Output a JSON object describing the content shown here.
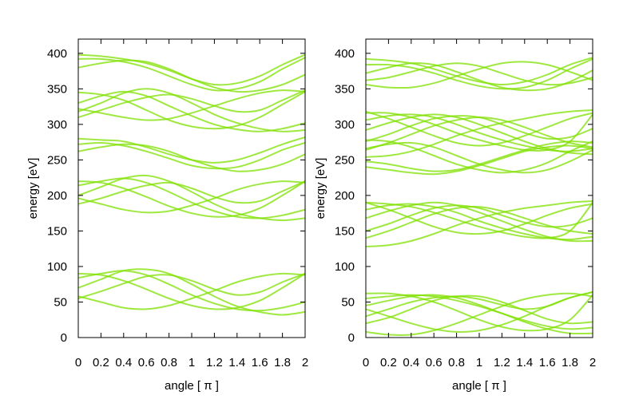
{
  "chart_data": [
    {
      "type": "line",
      "title": "",
      "xlabel": "angle [ π ]",
      "ylabel": "energy [eV]",
      "xlim": [
        0,
        2
      ],
      "ylim": [
        0,
        420
      ],
      "xticks": [
        "0",
        "0.2",
        "0.4",
        "0.6",
        "0.8",
        "1",
        "1.2",
        "1.4",
        "1.6",
        "1.8",
        "2"
      ],
      "yticks": [
        "0",
        "50",
        "100",
        "150",
        "200",
        "250",
        "300",
        "350",
        "400"
      ],
      "grid": false,
      "legend": "none",
      "colors": {
        "line": "#7fe000",
        "crossing": "#00c0c0"
      },
      "x": [
        0,
        0.2,
        0.4,
        0.6,
        0.8,
        1.0,
        1.2,
        1.4,
        1.6,
        1.8,
        2.0
      ],
      "series": [
        {
          "values": [
            90,
            88,
            80,
            68,
            55,
            45,
            40,
            42,
            52,
            70,
            90
          ]
        },
        {
          "values": [
            84,
            90,
            94,
            88,
            75,
            60,
            48,
            40,
            38,
            42,
            50
          ]
        },
        {
          "values": [
            70,
            82,
            94,
            96,
            90,
            75,
            58,
            44,
            36,
            32,
            36
          ]
        },
        {
          "values": [
            55,
            65,
            76,
            86,
            88,
            80,
            68,
            60,
            64,
            78,
            90
          ]
        },
        {
          "values": [
            58,
            50,
            42,
            40,
            45,
            55,
            66,
            78,
            86,
            90,
            88
          ]
        },
        {
          "values": [
            220,
            218,
            210,
            198,
            185,
            175,
            170,
            172,
            182,
            200,
            220
          ]
        },
        {
          "values": [
            214,
            220,
            224,
            218,
            205,
            190,
            178,
            170,
            168,
            172,
            180
          ]
        },
        {
          "values": [
            200,
            212,
            224,
            228,
            220,
            205,
            188,
            175,
            168,
            165,
            168
          ]
        },
        {
          "values": [
            188,
            196,
            206,
            214,
            218,
            210,
            198,
            190,
            192,
            206,
            220
          ]
        },
        {
          "values": [
            196,
            188,
            180,
            176,
            178,
            186,
            196,
            208,
            216,
            220,
            218
          ]
        },
        {
          "values": [
            345,
            342,
            334,
            320,
            306,
            297,
            294,
            298,
            310,
            328,
            346
          ]
        },
        {
          "values": [
            330,
            340,
            346,
            340,
            326,
            312,
            300,
            293,
            290,
            294,
            302
          ]
        },
        {
          "values": [
            318,
            330,
            344,
            350,
            344,
            330,
            314,
            302,
            294,
            290,
            292
          ]
        },
        {
          "values": [
            310,
            320,
            330,
            338,
            342,
            336,
            326,
            318,
            320,
            334,
            348
          ]
        },
        {
          "values": [
            322,
            316,
            310,
            306,
            308,
            316,
            326,
            336,
            344,
            348,
            346
          ]
        },
        {
          "values": [
            272,
            274,
            270,
            262,
            252,
            242,
            238,
            240,
            250,
            264,
            274
          ]
        },
        {
          "values": [
            262,
            268,
            272,
            270,
            262,
            250,
            240,
            234,
            236,
            244,
            258
          ]
        },
        {
          "values": [
            280,
            278,
            276,
            268,
            258,
            250,
            246,
            250,
            260,
            272,
            282
          ]
        },
        {
          "values": [
            392,
            392,
            388,
            380,
            368,
            356,
            348,
            350,
            360,
            378,
            394
          ]
        },
        {
          "values": [
            380,
            386,
            390,
            388,
            378,
            364,
            352,
            346,
            348,
            356,
            370
          ]
        },
        {
          "values": [
            398,
            396,
            392,
            386,
            376,
            364,
            356,
            358,
            368,
            384,
            398
          ]
        }
      ]
    },
    {
      "type": "line",
      "title": "",
      "xlabel": "angle [ π ]",
      "ylabel": "energy [eV]",
      "xlim": [
        0,
        2
      ],
      "ylim": [
        0,
        420
      ],
      "xticks": [
        "0",
        "0.2",
        "0.4",
        "0.6",
        "0.8",
        "1",
        "1.2",
        "1.4",
        "1.6",
        "1.8",
        "2"
      ],
      "yticks": [
        "0",
        "50",
        "100",
        "150",
        "200",
        "250",
        "300",
        "350",
        "400"
      ],
      "grid": false,
      "legend": "none",
      "colors": {
        "line": "#7fe000",
        "crossing": "#00c0c0"
      },
      "x": [
        0,
        0.2,
        0.4,
        0.6,
        0.8,
        1.0,
        1.2,
        1.4,
        1.6,
        1.8,
        2.0
      ],
      "series": [
        {
          "values": [
            62,
            62,
            58,
            50,
            38,
            25,
            15,
            10,
            12,
            25,
            60
          ]
        },
        {
          "values": [
            55,
            58,
            60,
            58,
            52,
            44,
            34,
            24,
            16,
            12,
            14
          ]
        },
        {
          "values": [
            45,
            52,
            58,
            60,
            56,
            46,
            34,
            22,
            12,
            6,
            6
          ]
        },
        {
          "values": [
            30,
            40,
            50,
            56,
            58,
            54,
            46,
            40,
            44,
            56,
            64
          ]
        },
        {
          "values": [
            20,
            28,
            40,
            52,
            58,
            58,
            50,
            38,
            26,
            20,
            22
          ]
        },
        {
          "values": [
            8,
            4,
            4,
            10,
            20,
            32,
            44,
            54,
            60,
            62,
            58
          ]
        },
        {
          "values": [
            40,
            30,
            20,
            12,
            8,
            10,
            18,
            30,
            44,
            56,
            64
          ]
        },
        {
          "values": [
            190,
            188,
            184,
            176,
            166,
            156,
            148,
            142,
            140,
            150,
            190
          ]
        },
        {
          "values": [
            180,
            186,
            188,
            184,
            176,
            164,
            154,
            146,
            140,
            138,
            142
          ]
        },
        {
          "values": [
            168,
            178,
            186,
            190,
            186,
            176,
            164,
            152,
            142,
            136,
            136
          ]
        },
        {
          "values": [
            150,
            160,
            172,
            182,
            186,
            182,
            172,
            162,
            156,
            158,
            168
          ]
        },
        {
          "values": [
            140,
            150,
            162,
            174,
            182,
            184,
            178,
            168,
            158,
            150,
            146
          ]
        },
        {
          "values": [
            128,
            130,
            136,
            146,
            158,
            168,
            176,
            182,
            186,
            190,
            192
          ]
        },
        {
          "values": [
            190,
            180,
            168,
            156,
            148,
            146,
            150,
            160,
            172,
            182,
            188
          ]
        },
        {
          "values": [
            316,
            316,
            310,
            300,
            288,
            278,
            270,
            264,
            264,
            276,
            314
          ]
        },
        {
          "values": [
            306,
            312,
            314,
            310,
            300,
            288,
            278,
            270,
            264,
            262,
            266
          ]
        },
        {
          "values": [
            292,
            302,
            310,
            314,
            310,
            300,
            288,
            276,
            266,
            260,
            258
          ]
        },
        {
          "values": [
            276,
            286,
            298,
            308,
            312,
            310,
            300,
            288,
            280,
            282,
            294
          ]
        },
        {
          "values": [
            264,
            274,
            286,
            298,
            306,
            310,
            306,
            296,
            284,
            274,
            268
          ]
        },
        {
          "values": [
            254,
            256,
            262,
            272,
            284,
            294,
            302,
            308,
            314,
            318,
            320
          ]
        },
        {
          "values": [
            318,
            308,
            296,
            284,
            274,
            270,
            274,
            284,
            296,
            308,
            316
          ]
        },
        {
          "values": [
            278,
            276,
            268,
            256,
            244,
            236,
            232,
            236,
            246,
            262,
            276
          ]
        },
        {
          "values": [
            266,
            272,
            274,
            268,
            256,
            244,
            236,
            232,
            236,
            248,
            264
          ]
        },
        {
          "values": [
            248,
            244,
            238,
            234,
            236,
            244,
            254,
            264,
            272,
            276,
            274
          ]
        },
        {
          "values": [
            240,
            236,
            232,
            230,
            234,
            242,
            252,
            262,
            268,
            270,
            266
          ]
        },
        {
          "values": [
            384,
            384,
            380,
            372,
            362,
            354,
            350,
            352,
            362,
            378,
            392
          ]
        },
        {
          "values": [
            372,
            380,
            386,
            384,
            374,
            362,
            352,
            348,
            350,
            360,
            376
          ]
        },
        {
          "values": [
            362,
            366,
            374,
            382,
            386,
            382,
            372,
            362,
            356,
            358,
            366
          ]
        },
        {
          "values": [
            356,
            352,
            352,
            358,
            368,
            378,
            386,
            388,
            384,
            374,
            362
          ]
        },
        {
          "values": [
            392,
            390,
            386,
            378,
            368,
            360,
            356,
            360,
            370,
            384,
            394
          ]
        }
      ]
    }
  ]
}
